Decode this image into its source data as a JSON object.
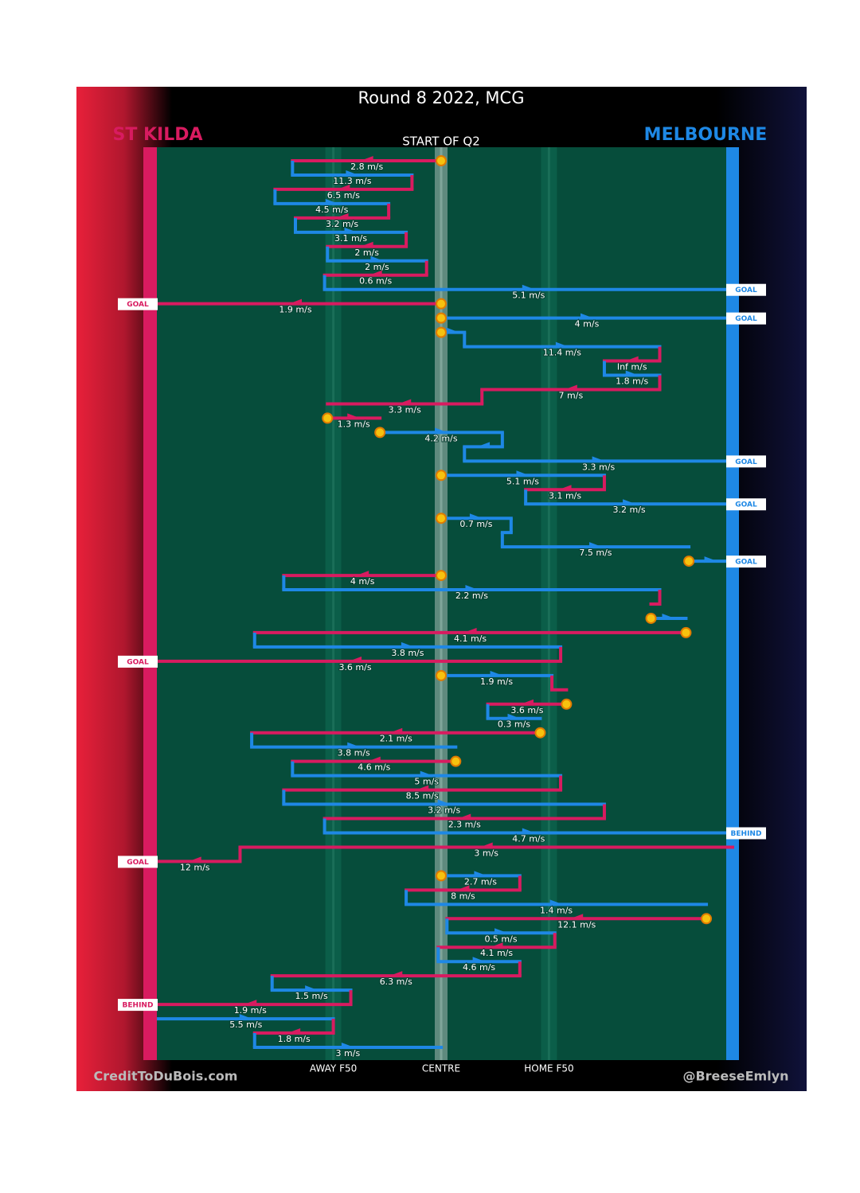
{
  "chart_data": {
    "type": "possession-flow",
    "title": "Round 8 2022, MCG",
    "subtitle": "START OF Q2",
    "credit_left": "CreditToDuBois.com",
    "credit_right": "@BreeseEmlyn",
    "teams": [
      {
        "name": "ST KILDA",
        "color": "#d81b60"
      },
      {
        "name": "MELBOURNE",
        "color": "#1e88e5"
      }
    ],
    "xlim": [
      -100,
      100
    ],
    "xticks": [
      {
        "value": -37,
        "label": "AWAY F50"
      },
      {
        "value": 0,
        "label": "CENTRE"
      },
      {
        "value": 37,
        "label": "HOME F50"
      }
    ],
    "segments": [
      {
        "team": 0,
        "from": 0,
        "to": -51,
        "speed": 2.8,
        "speed_label": "2.8 m/s",
        "stoppage": true
      },
      {
        "team": 1,
        "from": -51,
        "to": -10,
        "speed": 11.3,
        "speed_label": "11.3 m/s"
      },
      {
        "team": 0,
        "from": -10,
        "to": -57,
        "speed": 6.5,
        "speed_label": "6.5 m/s"
      },
      {
        "team": 1,
        "from": -57,
        "to": -18,
        "speed": 4.5,
        "speed_label": "4.5 m/s"
      },
      {
        "team": 0,
        "from": -18,
        "to": -50,
        "speed": 3.2,
        "speed_label": "3.2 m/s"
      },
      {
        "team": 1,
        "from": -50,
        "to": -12,
        "speed": 3.1,
        "speed_label": "3.1 m/s"
      },
      {
        "team": 0,
        "from": -12,
        "to": -39,
        "speed": 2,
        "speed_label": "2 m/s"
      },
      {
        "team": 1,
        "from": -39,
        "to": -5,
        "speed": 2,
        "speed_label": "2 m/s"
      },
      {
        "team": 0,
        "from": -5,
        "to": -40,
        "speed": 0.6,
        "speed_label": "0.6 m/s"
      },
      {
        "team": 1,
        "from": -40,
        "to": 100,
        "speed": 5.1,
        "speed_label": "5.1 m/s",
        "result": "GOAL"
      },
      {
        "team": 0,
        "from": 0,
        "to": -100,
        "speed": 1.9,
        "speed_label": "1.9 m/s",
        "stoppage": true,
        "result": "GOAL"
      },
      {
        "team": 1,
        "from": 0,
        "to": 100,
        "speed": 4,
        "speed_label": "4 m/s",
        "stoppage": true,
        "result": "GOAL"
      },
      {
        "team": 1,
        "from": 0,
        "to": 8,
        "stoppage": true
      },
      {
        "team": 1,
        "from": 8,
        "to": 75,
        "speed": 11.4,
        "speed_label": "11.4 m/s"
      },
      {
        "team": 0,
        "from": 75,
        "to": 56,
        "speed": null,
        "speed_label": "Inf m/s"
      },
      {
        "team": 1,
        "from": 56,
        "to": 75,
        "speed": 1.8,
        "speed_label": "1.8 m/s"
      },
      {
        "team": 0,
        "from": 75,
        "to": 14,
        "speed": 7,
        "speed_label": "7 m/s"
      },
      {
        "team": 0,
        "from": 14,
        "to": -39,
        "speed": 3.3,
        "speed_label": "3.3 m/s"
      },
      {
        "team": 0,
        "from": -39,
        "to": -21,
        "speed": 1.3,
        "speed_label": "1.3 m/s",
        "stoppage": true
      },
      {
        "team": 1,
        "from": -21,
        "to": 21,
        "speed": 4.2,
        "speed_label": "4.2 m/s",
        "stoppage": true
      },
      {
        "team": 1,
        "from": 21,
        "to": 8
      },
      {
        "team": 1,
        "from": 8,
        "to": 100,
        "speed": 3.3,
        "speed_label": "3.3 m/s",
        "result": "GOAL"
      },
      {
        "team": 1,
        "from": 0,
        "to": 56,
        "speed": 5.1,
        "speed_label": "5.1 m/s",
        "stoppage": true
      },
      {
        "team": 0,
        "from": 56,
        "to": 29,
        "speed": 3.1,
        "speed_label": "3.1 m/s"
      },
      {
        "team": 1,
        "from": 29,
        "to": 100,
        "speed": 3.2,
        "speed_label": "3.2 m/s",
        "result": "GOAL"
      },
      {
        "team": 1,
        "from": 0,
        "to": 24,
        "speed": 0.7,
        "speed_label": "0.7 m/s",
        "stoppage": true
      },
      {
        "team": 1,
        "from": 24,
        "to": 21
      },
      {
        "team": 1,
        "from": 21,
        "to": 85,
        "speed": 7.5,
        "speed_label": "7.5 m/s"
      },
      {
        "team": 1,
        "from": 85,
        "to": 100,
        "stoppage": true,
        "result": "GOAL"
      },
      {
        "team": 0,
        "from": 0,
        "to": -54,
        "speed": 4,
        "speed_label": "4 m/s",
        "stoppage": true
      },
      {
        "team": 1,
        "from": -54,
        "to": 75,
        "speed": 2.2,
        "speed_label": "2.2 m/s"
      },
      {
        "team": 0,
        "from": 75,
        "to": 72
      },
      {
        "team": 1,
        "from": 72,
        "to": 84,
        "stoppage": true
      },
      {
        "team": 0,
        "from": 84,
        "to": -64,
        "speed": 4.1,
        "speed_label": "4.1 m/s",
        "stoppage": true
      },
      {
        "team": 1,
        "from": -64,
        "to": 41,
        "speed": 3.8,
        "speed_label": "3.8 m/s"
      },
      {
        "team": 0,
        "from": 41,
        "to": -100,
        "speed": 3.6,
        "speed_label": "3.6 m/s",
        "result": "GOAL"
      },
      {
        "team": 1,
        "from": 0,
        "to": 38,
        "speed": 1.9,
        "speed_label": "1.9 m/s",
        "stoppage": true
      },
      {
        "team": 0,
        "from": 38,
        "to": 43
      },
      {
        "team": 0,
        "from": 43,
        "to": 16,
        "speed": 3.6,
        "speed_label": "3.6 m/s",
        "stoppage": true
      },
      {
        "team": 1,
        "from": 16,
        "to": 34,
        "speed": 0.3,
        "speed_label": "0.3 m/s"
      },
      {
        "team": 0,
        "from": 34,
        "to": -65,
        "speed": 2.1,
        "speed_label": "2.1 m/s",
        "stoppage": true
      },
      {
        "team": 1,
        "from": -65,
        "to": 5,
        "speed": 3.8,
        "speed_label": "3.8 m/s"
      },
      {
        "team": 0,
        "from": 5,
        "to": -51,
        "speed": 4.6,
        "speed_label": "4.6 m/s",
        "stoppage": true
      },
      {
        "team": 1,
        "from": -51,
        "to": 41,
        "speed": 5,
        "speed_label": "5 m/s"
      },
      {
        "team": 0,
        "from": 41,
        "to": -54,
        "speed": 8.5,
        "speed_label": "8.5 m/s"
      },
      {
        "team": 1,
        "from": -54,
        "to": 56,
        "speed": 3.2,
        "speed_label": "3.2 m/s"
      },
      {
        "team": 0,
        "from": 56,
        "to": -40,
        "speed": 2.3,
        "speed_label": "2.3 m/s"
      },
      {
        "team": 1,
        "from": -40,
        "to": 100,
        "speed": 4.7,
        "speed_label": "4.7 m/s",
        "result": "BEHIND"
      },
      {
        "team": 0,
        "from": 100,
        "to": -69,
        "speed": 3,
        "speed_label": "3 m/s"
      },
      {
        "team": 0,
        "from": -69,
        "to": -100,
        "speed": 12,
        "speed_label": "12 m/s",
        "result": "GOAL"
      },
      {
        "team": 1,
        "from": 0,
        "to": 27,
        "speed": 2.7,
        "speed_label": "2.7 m/s",
        "stoppage": true
      },
      {
        "team": 0,
        "from": 27,
        "to": -12,
        "speed": 8,
        "speed_label": "8 m/s"
      },
      {
        "team": 1,
        "from": -12,
        "to": 91,
        "speed": 1.4,
        "speed_label": "1.4 m/s"
      },
      {
        "team": 0,
        "from": 91,
        "to": 2,
        "speed": 12.1,
        "speed_label": "12.1 m/s",
        "stoppage": true
      },
      {
        "team": 1,
        "from": 2,
        "to": 39,
        "speed": 0.5,
        "speed_label": "0.5 m/s"
      },
      {
        "team": 0,
        "from": 39,
        "to": -1,
        "speed": 4.1,
        "speed_label": "4.1 m/s"
      },
      {
        "team": 1,
        "from": -1,
        "to": 27,
        "speed": 4.6,
        "speed_label": "4.6 m/s"
      },
      {
        "team": 0,
        "from": 27,
        "to": -58,
        "speed": 6.3,
        "speed_label": "6.3 m/s"
      },
      {
        "team": 1,
        "from": -58,
        "to": -31,
        "speed": 1.5,
        "speed_label": "1.5 m/s"
      },
      {
        "team": 0,
        "from": -31,
        "to": -100,
        "speed": 1.9,
        "speed_label": "1.9 m/s",
        "result": "BEHIND"
      },
      {
        "team": 1,
        "from": -97,
        "to": -37,
        "speed": 5.5,
        "speed_label": "5.5 m/s"
      },
      {
        "team": 0,
        "from": -37,
        "to": -64,
        "speed": 1.8,
        "speed_label": "1.8 m/s"
      },
      {
        "team": 1,
        "from": -64,
        "to": 0,
        "speed": 3,
        "speed_label": "3 m/s"
      }
    ]
  }
}
